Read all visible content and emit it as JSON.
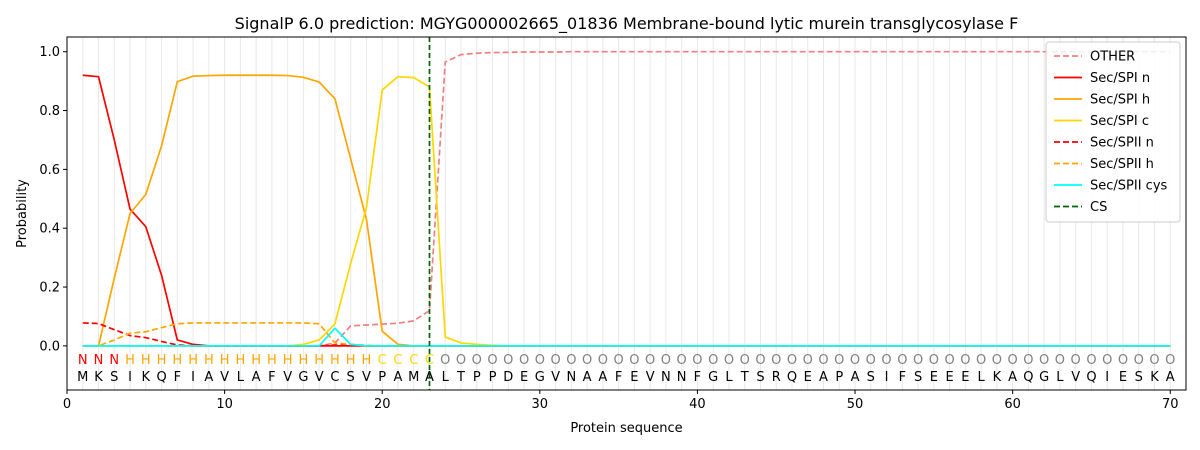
{
  "chart_data": {
    "type": "line",
    "title": "SignalP 6.0 prediction: MGYG000002665_01836 Membrane-bound lytic murein transglycosylase F",
    "xlabel": "Protein sequence",
    "ylabel": "Probability",
    "xlim": [
      0,
      71
    ],
    "ylim": [
      -0.15,
      1.05
    ],
    "x_ticks": [
      "0",
      "10",
      "20",
      "30",
      "40",
      "50",
      "60",
      "70"
    ],
    "y_ticks": [
      "0.0",
      "0.2",
      "0.4",
      "0.6",
      "0.8",
      "1.0"
    ],
    "legend_position": "top-right",
    "sequence": "MKSIKQFIAVLAFVGVCSVPAMALTPPDEGVNAAFEVNNFGLTSRQEAPASIFSEEELKAQGLVQIESKA",
    "labels": "NNNHHHHHHHHHHHHHHHHCCCCOOOOOOOOOOOOOOOOOOOOOOOOOOOOOOOOOOOOOOOOOOOOOOO",
    "label_colors": {
      "N": "#ff0000",
      "H": "#ffa500",
      "C": "#ffd700",
      "O": "#808080"
    },
    "cleavage_site": 23,
    "series": [
      {
        "name": "OTHER",
        "color": "#f08080",
        "dash": true,
        "values": [
          0.0,
          0.0,
          0.0,
          0.0,
          0.0,
          0.0,
          0.0,
          0.0,
          0.0,
          0.0,
          0.0,
          0.0,
          0.0,
          0.0,
          0.0,
          0.0,
          0.01,
          0.068,
          0.071,
          0.074,
          0.077,
          0.085,
          0.12,
          0.965,
          0.99,
          0.995,
          0.997,
          0.998,
          0.999,
          0.999,
          0.999,
          1.0,
          1.0,
          1.0,
          1.0,
          1.0,
          1.0,
          1.0,
          1.0,
          1.0,
          1.0,
          1.0,
          1.0,
          1.0,
          1.0,
          1.0,
          1.0,
          1.0,
          1.0,
          1.0,
          1.0,
          1.0,
          1.0,
          1.0,
          1.0,
          1.0,
          1.0,
          1.0,
          1.0,
          1.0,
          1.0,
          1.0,
          1.0,
          1.0,
          1.0,
          1.0,
          1.0,
          1.0,
          1.0,
          1.0
        ]
      },
      {
        "name": "Sec/SPI n",
        "color": "#ff0000",
        "dash": false,
        "values": [
          0.92,
          0.915,
          0.7,
          0.465,
          0.405,
          0.24,
          0.02,
          0.005,
          0.0,
          0.0,
          0.0,
          0.0,
          0.0,
          0.0,
          0.0,
          0.0,
          0.0,
          0.0,
          0.0,
          0.0,
          0.0,
          0.0,
          0.0,
          0.0,
          0.0,
          0.0,
          0.0,
          0.0,
          0.0,
          0.0,
          0.0,
          0.0,
          0.0,
          0.0,
          0.0,
          0.0,
          0.0,
          0.0,
          0.0,
          0.0,
          0.0,
          0.0,
          0.0,
          0.0,
          0.0,
          0.0,
          0.0,
          0.0,
          0.0,
          0.0,
          0.0,
          0.0,
          0.0,
          0.0,
          0.0,
          0.0,
          0.0,
          0.0,
          0.0,
          0.0,
          0.0,
          0.0,
          0.0,
          0.0,
          0.0,
          0.0,
          0.0,
          0.0,
          0.0,
          0.0
        ]
      },
      {
        "name": "Sec/SPI h",
        "color": "#ffa500",
        "dash": false,
        "values": [
          0.0,
          0.0,
          0.23,
          0.45,
          0.515,
          0.68,
          0.898,
          0.917,
          0.919,
          0.92,
          0.92,
          0.92,
          0.92,
          0.919,
          0.913,
          0.897,
          0.84,
          0.635,
          0.43,
          0.05,
          0.005,
          0.0,
          0.0,
          0.0,
          0.0,
          0.0,
          0.0,
          0.0,
          0.0,
          0.0,
          0.0,
          0.0,
          0.0,
          0.0,
          0.0,
          0.0,
          0.0,
          0.0,
          0.0,
          0.0,
          0.0,
          0.0,
          0.0,
          0.0,
          0.0,
          0.0,
          0.0,
          0.0,
          0.0,
          0.0,
          0.0,
          0.0,
          0.0,
          0.0,
          0.0,
          0.0,
          0.0,
          0.0,
          0.0,
          0.0,
          0.0,
          0.0,
          0.0,
          0.0,
          0.0,
          0.0,
          0.0,
          0.0,
          0.0,
          0.0
        ]
      },
      {
        "name": "Sec/SPI c",
        "color": "#ffd700",
        "dash": false,
        "values": [
          0.0,
          0.0,
          0.0,
          0.0,
          0.0,
          0.0,
          0.0,
          0.0,
          0.0,
          0.0,
          0.0,
          0.0,
          0.0,
          0.0,
          0.005,
          0.02,
          0.075,
          0.28,
          0.47,
          0.87,
          0.915,
          0.912,
          0.88,
          0.03,
          0.01,
          0.005,
          0.002,
          0.0,
          0.0,
          0.0,
          0.0,
          0.0,
          0.0,
          0.0,
          0.0,
          0.0,
          0.0,
          0.0,
          0.0,
          0.0,
          0.0,
          0.0,
          0.0,
          0.0,
          0.0,
          0.0,
          0.0,
          0.0,
          0.0,
          0.0,
          0.0,
          0.0,
          0.0,
          0.0,
          0.0,
          0.0,
          0.0,
          0.0,
          0.0,
          0.0,
          0.0,
          0.0,
          0.0,
          0.0,
          0.0,
          0.0,
          0.0,
          0.0,
          0.0,
          0.0
        ]
      },
      {
        "name": "Sec/SPII n",
        "color": "#ff0000",
        "dash": true,
        "values": [
          0.078,
          0.076,
          0.055,
          0.035,
          0.028,
          0.015,
          0.003,
          0.0,
          0.0,
          0.0,
          0.0,
          0.0,
          0.0,
          0.0,
          0.0,
          0.0,
          0.003,
          0.002,
          0.0,
          0.0,
          0.0,
          0.0,
          0.0,
          0.0,
          0.0,
          0.0,
          0.0,
          0.0,
          0.0,
          0.0,
          0.0,
          0.0,
          0.0,
          0.0,
          0.0,
          0.0,
          0.0,
          0.0,
          0.0,
          0.0,
          0.0,
          0.0,
          0.0,
          0.0,
          0.0,
          0.0,
          0.0,
          0.0,
          0.0,
          0.0,
          0.0,
          0.0,
          0.0,
          0.0,
          0.0,
          0.0,
          0.0,
          0.0,
          0.0,
          0.0,
          0.0,
          0.0,
          0.0,
          0.0,
          0.0,
          0.0,
          0.0,
          0.0,
          0.0,
          0.0
        ]
      },
      {
        "name": "Sec/SPII h",
        "color": "#ffa500",
        "dash": true,
        "values": [
          0.0,
          0.0,
          0.02,
          0.043,
          0.048,
          0.062,
          0.075,
          0.078,
          0.078,
          0.078,
          0.078,
          0.078,
          0.078,
          0.078,
          0.078,
          0.075,
          0.01,
          0.005,
          0.002,
          0.0,
          0.0,
          0.0,
          0.0,
          0.0,
          0.0,
          0.0,
          0.0,
          0.0,
          0.0,
          0.0,
          0.0,
          0.0,
          0.0,
          0.0,
          0.0,
          0.0,
          0.0,
          0.0,
          0.0,
          0.0,
          0.0,
          0.0,
          0.0,
          0.0,
          0.0,
          0.0,
          0.0,
          0.0,
          0.0,
          0.0,
          0.0,
          0.0,
          0.0,
          0.0,
          0.0,
          0.0,
          0.0,
          0.0,
          0.0,
          0.0,
          0.0,
          0.0,
          0.0,
          0.0,
          0.0,
          0.0,
          0.0,
          0.0,
          0.0,
          0.0
        ]
      },
      {
        "name": "Sec/SPII cys",
        "color": "#00ffff",
        "dash": false,
        "values": [
          0.0,
          0.0,
          0.0,
          0.0,
          0.0,
          0.0,
          0.0,
          0.0,
          0.0,
          0.0,
          0.0,
          0.0,
          0.0,
          0.0,
          0.0,
          0.0,
          0.06,
          0.005,
          0.0,
          0.0,
          0.0,
          0.0,
          0.0,
          0.0,
          0.0,
          0.0,
          0.0,
          0.0,
          0.0,
          0.0,
          0.0,
          0.0,
          0.0,
          0.0,
          0.0,
          0.0,
          0.0,
          0.0,
          0.0,
          0.0,
          0.0,
          0.0,
          0.0,
          0.0,
          0.0,
          0.0,
          0.0,
          0.0,
          0.0,
          0.0,
          0.0,
          0.0,
          0.0,
          0.0,
          0.0,
          0.0,
          0.0,
          0.0,
          0.0,
          0.0,
          0.0,
          0.0,
          0.0,
          0.0,
          0.0,
          0.0,
          0.0,
          0.0,
          0.0,
          0.0
        ]
      }
    ],
    "cs_legend": {
      "name": "CS",
      "color": "#006400"
    }
  }
}
